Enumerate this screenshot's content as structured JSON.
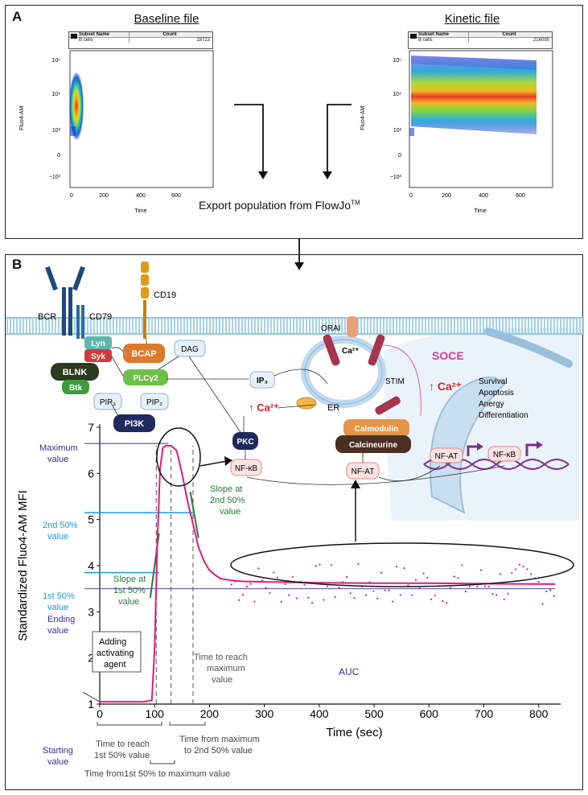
{
  "panelA": {
    "label": "A",
    "baseline_title": "Baseline file",
    "kinetic_title": "Kinetic file",
    "baseline_gate": {
      "col1": "Subset Name",
      "col2": "Count",
      "name": "B cells",
      "count": "18723"
    },
    "kinetic_gate": {
      "col1": "Subset Name",
      "col2": "Count",
      "name": "B cells",
      "count": "216095"
    },
    "y_axis_label": "Fluo4-AM",
    "x_axis_label": "Time",
    "y_ticks": [
      "10⁵",
      "10⁴",
      "10³",
      "0",
      "−10³"
    ],
    "x_ticks": [
      "0",
      "200",
      "400",
      "600"
    ],
    "export_text": "Export population from FlowJo",
    "export_tm": "TM"
  },
  "panelB": {
    "label": "B",
    "pathway": {
      "BCR": "BCR",
      "CD79": "CD79",
      "CD19": "CD19",
      "Lyn": "Lyn",
      "Syk": "Syk",
      "BLNK": "BLNK",
      "Btk": "Btk",
      "BCAP": "BCAP",
      "DAG": "DAG",
      "PLCg2": "PLCγ2",
      "PIP3": "PIP₃",
      "PIP2": "PIP₂",
      "PI3K": "PI3K",
      "IP3": "IP₃",
      "Ca_up_left": "↑ Ca²⁺",
      "ER": "ER",
      "ORAI": "ORAI",
      "Ca_orai": "Ca²⁺",
      "STIM": "STIM",
      "SOCE": "SOCE",
      "Ca_up_right": "↑ Ca²⁺",
      "PKC": "PKC",
      "NFkB": "NF-κB",
      "Calmodulin": "Calmodulin",
      "Calcineurine": "Calcineurine",
      "NFAT": "NF-AT",
      "NFAT2": "NF-AT",
      "NFkB2": "NF-κB",
      "outcomes": [
        "Survival",
        "Apoptosis",
        "Anergy",
        "Differentiation"
      ]
    },
    "chart_labels": {
      "maximum_value": [
        "Maximum",
        "value"
      ],
      "second_50": [
        "2nd 50%",
        "value"
      ],
      "first_50": [
        "1st 50%",
        "value"
      ],
      "ending_value": [
        "Ending",
        "value"
      ],
      "starting_value": [
        "Starting",
        "value"
      ],
      "slope_first": [
        "Slope at",
        "1st 50%",
        "value"
      ],
      "slope_second": [
        "Slope at",
        "2nd 50%",
        "value"
      ],
      "adding_agent": [
        "Adding",
        "activating",
        "agent"
      ],
      "time_to_max": [
        "Time to reach",
        "maximum",
        "value"
      ],
      "auc": "AUC",
      "time_first_50": [
        "Time to reach",
        "1st 50% value"
      ],
      "time_max_to_second": [
        "Time from maximum",
        "to 2nd 50% value"
      ],
      "time_first_to_max": "Time from1st 50% to maximum value"
    }
  },
  "colors": {
    "curve": "#e6197a",
    "maximum_line": "#3a2f8f",
    "fifty_line": "#1d9ad6",
    "slope": "#2a7a3a",
    "membrane": "#8fc7e6"
  },
  "chart_data": {
    "type": "line",
    "title": "",
    "xlabel": "Time (sec)",
    "ylabel": "Standardized Fluo4-AM MFI",
    "xlim": [
      0,
      840
    ],
    "ylim": [
      1,
      7
    ],
    "x_ticks": [
      0,
      100,
      200,
      300,
      400,
      500,
      600,
      700,
      800
    ],
    "y_ticks": [
      1,
      2,
      3,
      4,
      5,
      6,
      7
    ],
    "grid": false,
    "series": [
      {
        "x": [
          0,
          20,
          40,
          60,
          80,
          95,
          100,
          105,
          110,
          115,
          120,
          130,
          140,
          150,
          160,
          170,
          180,
          190,
          200,
          210,
          220,
          240,
          260,
          300,
          400,
          500,
          600,
          700,
          830
        ],
        "y": [
          1.05,
          1.05,
          1.05,
          1.05,
          1.05,
          1.08,
          2.2,
          4.5,
          6.1,
          6.55,
          6.6,
          6.6,
          6.5,
          6.0,
          5.4,
          4.9,
          4.4,
          4.1,
          3.9,
          3.8,
          3.72,
          3.68,
          3.66,
          3.65,
          3.63,
          3.62,
          3.62,
          3.61,
          3.6
        ]
      }
    ],
    "reference_values": {
      "maximum": 6.65,
      "second_50": 5.15,
      "first_50": 3.85,
      "ending": 3.5,
      "starting": 1.05
    }
  }
}
